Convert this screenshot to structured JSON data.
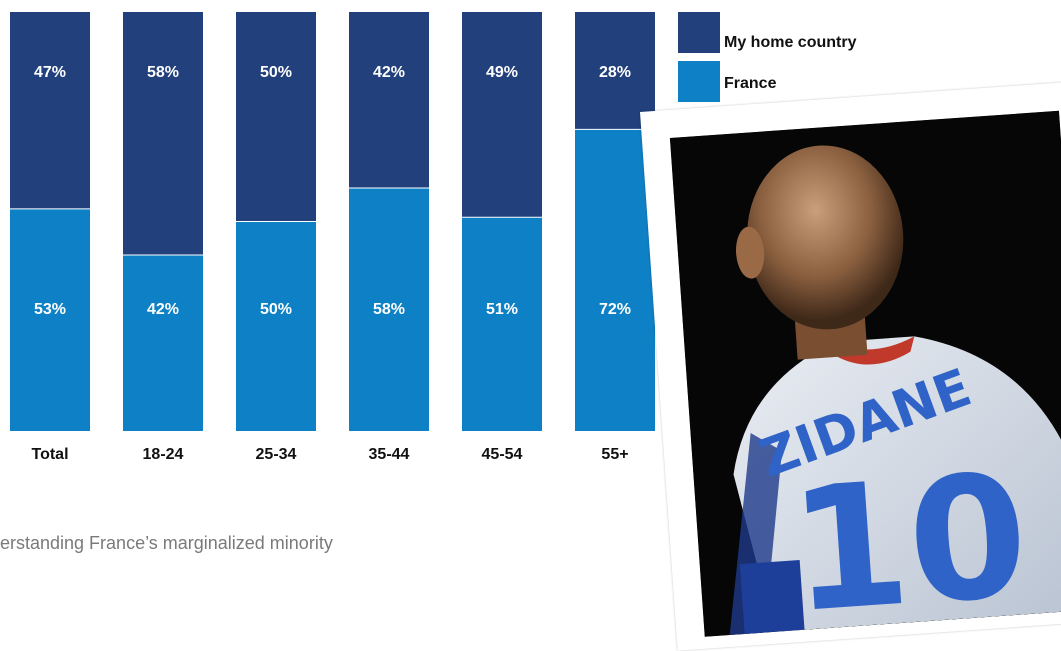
{
  "chart_data": {
    "type": "bar",
    "stacked": true,
    "categories": [
      "Total",
      "18-24",
      "25-34",
      "35-44",
      "45-54",
      "55+"
    ],
    "series": [
      {
        "name": "France",
        "values": [
          53,
          42,
          50,
          58,
          51,
          72
        ],
        "labels": [
          "53%",
          "42%",
          "50%",
          "58%",
          "51%",
          "72%"
        ],
        "color": "#0e80c5"
      },
      {
        "name": "My home country",
        "values": [
          47,
          58,
          50,
          42,
          49,
          28
        ],
        "labels": [
          "47%",
          "58%",
          "50%",
          "42%",
          "49%",
          "28%"
        ],
        "color": "#22407b"
      }
    ],
    "ylim": [
      0,
      100
    ],
    "grid": false,
    "legend": {
      "placement": "top-right",
      "order": [
        "My home country",
        "France"
      ]
    }
  },
  "caption": "erstanding  France’s marginalized minority",
  "photo": {
    "jersey_text": "ZIDANE",
    "jersey_number": "10"
  }
}
